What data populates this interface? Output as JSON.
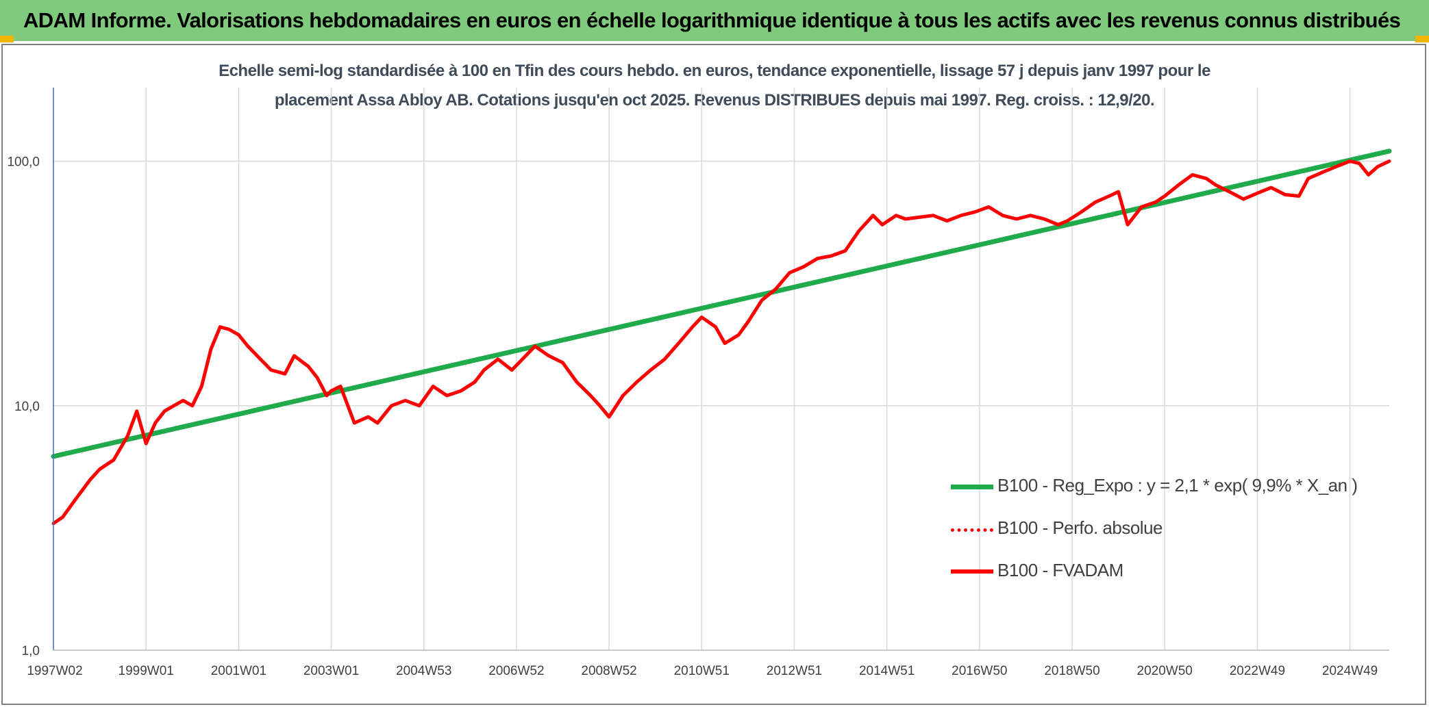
{
  "header": {
    "title": "ADAM Informe. Valorisations hebdomadaires en euros en échelle logarithmique identique à tous les actifs avec les revenus connus distribués"
  },
  "colors": {
    "header_bg": "#7fca7c",
    "regression": "#1faa4b",
    "performance": "#ff0000",
    "fvadam": "#ff0000",
    "axis": "#4472c4",
    "grid": "#d9d9d9"
  },
  "chart_data": {
    "type": "line",
    "y_scale": "log",
    "ylim": [
      1,
      200
    ],
    "title_lines": [
      "Echelle semi-log standardisée à 100 en Tfin des cours hebdo. en euros, tendance exponentielle, lissage 57 j depuis janv 1997 pour le",
      "placement Assa Abloy AB. Cotations jusqu'en oct 2025. Revenus DISTRIBUES depuis mai 1997. Reg. croiss. : 12,9/20."
    ],
    "xlim": [
      1997.0,
      2025.85
    ],
    "y_ticks": [
      {
        "value": 1,
        "label": "1,0"
      },
      {
        "value": 10,
        "label": "10,0"
      },
      {
        "value": 100,
        "label": "100,0"
      }
    ],
    "x_ticks": [
      {
        "x": 1997.0,
        "label": "1997W02"
      },
      {
        "x": 1999.0,
        "label": "1999W01"
      },
      {
        "x": 2001.0,
        "label": "2001W01"
      },
      {
        "x": 2003.0,
        "label": "2003W01"
      },
      {
        "x": 2005.0,
        "label": "2004W53"
      },
      {
        "x": 2007.0,
        "label": "2006W52"
      },
      {
        "x": 2009.0,
        "label": "2008W52"
      },
      {
        "x": 2011.0,
        "label": "2010W51"
      },
      {
        "x": 2013.0,
        "label": "2012W51"
      },
      {
        "x": 2015.0,
        "label": "2014W51"
      },
      {
        "x": 2017.0,
        "label": "2016W50"
      },
      {
        "x": 2019.0,
        "label": "2018W50"
      },
      {
        "x": 2021.0,
        "label": "2020W50"
      },
      {
        "x": 2023.0,
        "label": "2022W49"
      },
      {
        "x": 2025.0,
        "label": "2024W49"
      }
    ],
    "legend_position": "right",
    "legend": [
      {
        "key": "regression",
        "label": "B100 - Reg_Expo : y = 2,1 * exp( 9,9% *  X_an )"
      },
      {
        "key": "performance",
        "label": "B100 - Perfo. absolue"
      },
      {
        "key": "fvadam",
        "label": "B100 - FVADAM"
      }
    ],
    "series": [
      {
        "key": "regression",
        "name": "B100 - Reg_Expo : y = 2,1 * exp( 9,9% *  X_an )",
        "x": [
          1997.0,
          2025.85
        ],
        "y": [
          6.2,
          110
        ]
      },
      {
        "key": "fvadam",
        "name": "B100 - FVADAM",
        "x": [
          1997.0,
          1997.2,
          1997.5,
          1997.8,
          1998.0,
          1998.3,
          1998.6,
          1998.8,
          1999.0,
          1999.2,
          1999.4,
          1999.6,
          1999.8,
          2000.0,
          2000.2,
          2000.4,
          2000.6,
          2000.8,
          2001.0,
          2001.2,
          2001.4,
          2001.7,
          2002.0,
          2002.2,
          2002.5,
          2002.7,
          2002.9,
          2003.0,
          2003.2,
          2003.5,
          2003.8,
          2004.0,
          2004.3,
          2004.6,
          2004.9,
          2005.2,
          2005.5,
          2005.8,
          2006.1,
          2006.3,
          2006.6,
          2006.9,
          2007.2,
          2007.4,
          2007.7,
          2008.0,
          2008.3,
          2008.6,
          2008.8,
          2009.0,
          2009.3,
          2009.6,
          2009.9,
          2010.2,
          2010.5,
          2010.8,
          2011.0,
          2011.3,
          2011.5,
          2011.8,
          2012.0,
          2012.3,
          2012.6,
          2012.9,
          2013.2,
          2013.5,
          2013.8,
          2014.1,
          2014.4,
          2014.7,
          2014.9,
          2015.2,
          2015.4,
          2015.7,
          2016.0,
          2016.3,
          2016.6,
          2016.9,
          2017.2,
          2017.5,
          2017.8,
          2018.1,
          2018.4,
          2018.7,
          2018.9,
          2019.2,
          2019.5,
          2019.8,
          2020.0,
          2020.2,
          2020.5,
          2020.8,
          2021.0,
          2021.3,
          2021.6,
          2021.9,
          2022.1,
          2022.4,
          2022.7,
          2023.0,
          2023.3,
          2023.6,
          2023.9,
          2024.1,
          2024.4,
          2024.7,
          2025.0,
          2025.2,
          2025.4,
          2025.6,
          2025.85
        ],
        "y": [
          3.3,
          3.5,
          4.2,
          5.0,
          5.5,
          6.0,
          7.5,
          9.5,
          7.0,
          8.5,
          9.5,
          10.0,
          10.5,
          10.0,
          12.0,
          17.0,
          21.0,
          20.5,
          19.5,
          17.5,
          16.0,
          14.0,
          13.5,
          16.0,
          14.5,
          13.0,
          11.0,
          11.5,
          12.0,
          8.5,
          9.0,
          8.5,
          10.0,
          10.5,
          10.0,
          12.0,
          11.0,
          11.5,
          12.5,
          14.0,
          15.5,
          14.0,
          16.0,
          17.5,
          16.0,
          15.0,
          12.5,
          11.0,
          10.0,
          9.0,
          11.0,
          12.5,
          14.0,
          15.5,
          18.0,
          21.0,
          23.0,
          21.0,
          18.0,
          19.5,
          22.0,
          27.0,
          30.0,
          35.0,
          37.0,
          40.0,
          41.0,
          43.0,
          52.0,
          60.0,
          55.0,
          60.0,
          58.0,
          59.0,
          60.0,
          57.0,
          60.0,
          62.0,
          65.0,
          60.0,
          58.0,
          60.0,
          58.0,
          55.0,
          57.0,
          62.0,
          68.0,
          72.0,
          75.0,
          55.0,
          65.0,
          68.0,
          72.0,
          80.0,
          88.0,
          85.0,
          80.0,
          75.0,
          70.0,
          74.0,
          78.0,
          73.0,
          72.0,
          85.0,
          90.0,
          95.0,
          100.0,
          98.0,
          88.0,
          95.0,
          100.0
        ]
      }
    ]
  }
}
